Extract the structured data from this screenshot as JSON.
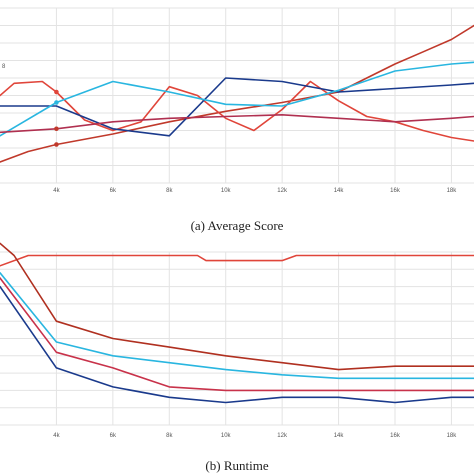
{
  "chart_data": [
    {
      "type": "line",
      "caption": "(a)  Average Score",
      "x_tick_labels": [
        "4k",
        "6k",
        "8k",
        "10k",
        "12k",
        "14k",
        "16k",
        "18k"
      ],
      "y_tick_labels": [
        "8"
      ],
      "x_ticks": [
        4,
        6,
        8,
        10,
        12,
        14,
        16,
        18
      ],
      "xlim": [
        2,
        18.8
      ],
      "ylim": [
        0,
        1
      ],
      "grid": true,
      "series": [
        {
          "color": "#c0392b",
          "x": [
            2,
            3,
            4,
            6,
            8,
            10,
            12,
            14,
            15,
            16,
            17,
            18,
            18.8
          ],
          "y": [
            0.12,
            0.18,
            0.22,
            0.28,
            0.35,
            0.41,
            0.46,
            0.52,
            0.6,
            0.68,
            0.75,
            0.82,
            0.9
          ]
        },
        {
          "color": "#e0453a",
          "x": [
            2,
            2.5,
            3.5,
            4,
            5,
            6,
            7,
            8,
            9,
            10,
            11,
            12,
            13,
            14,
            15,
            16,
            17,
            18,
            18.8
          ],
          "y": [
            0.5,
            0.57,
            0.58,
            0.52,
            0.36,
            0.3,
            0.35,
            0.55,
            0.5,
            0.37,
            0.3,
            0.42,
            0.58,
            0.47,
            0.38,
            0.35,
            0.3,
            0.26,
            0.24
          ]
        },
        {
          "color": "#1a3a8c",
          "x": [
            2,
            4,
            6,
            8,
            10,
            12,
            14,
            16,
            18,
            18.8
          ],
          "y": [
            0.44,
            0.44,
            0.31,
            0.27,
            0.6,
            0.58,
            0.52,
            0.54,
            0.56,
            0.57
          ]
        },
        {
          "color": "#29b6e0",
          "x": [
            2,
            4,
            6,
            8,
            10,
            12,
            14,
            16,
            18,
            18.8
          ],
          "y": [
            0.27,
            0.46,
            0.58,
            0.52,
            0.45,
            0.44,
            0.53,
            0.64,
            0.68,
            0.69
          ]
        },
        {
          "color": "#b03050",
          "x": [
            2,
            4,
            6,
            8,
            10,
            12,
            14,
            16,
            18,
            18.8
          ],
          "y": [
            0.29,
            0.31,
            0.35,
            0.37,
            0.38,
            0.39,
            0.37,
            0.35,
            0.37,
            0.38
          ]
        }
      ],
      "markers": [
        {
          "color": "#e0453a",
          "x": 4,
          "y": 0.52
        },
        {
          "color": "#29b6e0",
          "x": 4,
          "y": 0.46
        },
        {
          "color": "#c0392b",
          "x": 4,
          "y": 0.31
        },
        {
          "color": "#c0392b",
          "x": 4,
          "y": 0.22
        }
      ]
    },
    {
      "type": "line",
      "caption": "(b)  Runtime",
      "x_tick_labels": [
        "4k",
        "6k",
        "8k",
        "10k",
        "12k",
        "14k",
        "16k",
        "18k"
      ],
      "x_ticks": [
        4,
        6,
        8,
        10,
        12,
        14,
        16,
        18
      ],
      "xlim": [
        2,
        18.8
      ],
      "ylim": [
        0,
        1
      ],
      "grid": true,
      "series": [
        {
          "color": "#e0453a",
          "x": [
            2,
            3,
            4,
            6,
            8,
            9,
            9.3,
            12,
            12.5,
            14,
            16,
            18,
            18.8
          ],
          "y": [
            0.92,
            0.98,
            0.98,
            0.98,
            0.98,
            0.98,
            0.95,
            0.95,
            0.98,
            0.98,
            0.98,
            0.98,
            0.98
          ]
        },
        {
          "color": "#b03020",
          "x": [
            2,
            2.5,
            4,
            6,
            8,
            10,
            12,
            14,
            16,
            18,
            18.8
          ],
          "y": [
            1.05,
            0.98,
            0.6,
            0.5,
            0.45,
            0.4,
            0.36,
            0.32,
            0.34,
            0.34,
            0.34
          ]
        },
        {
          "color": "#29b6e0",
          "x": [
            2,
            4,
            6,
            8,
            10,
            12,
            14,
            16,
            18,
            18.8
          ],
          "y": [
            0.88,
            0.48,
            0.4,
            0.36,
            0.32,
            0.29,
            0.27,
            0.27,
            0.27,
            0.27
          ]
        },
        {
          "color": "#c8324a",
          "x": [
            2,
            4,
            6,
            8,
            10,
            12,
            14,
            16,
            18,
            18.8
          ],
          "y": [
            0.85,
            0.42,
            0.33,
            0.22,
            0.2,
            0.2,
            0.2,
            0.2,
            0.2,
            0.2
          ]
        },
        {
          "color": "#1a3a8c",
          "x": [
            2,
            4,
            6,
            8,
            10,
            12,
            14,
            16,
            18,
            18.8
          ],
          "y": [
            0.8,
            0.33,
            0.22,
            0.16,
            0.13,
            0.16,
            0.16,
            0.13,
            0.16,
            0.16
          ]
        }
      ],
      "markers": []
    }
  ]
}
